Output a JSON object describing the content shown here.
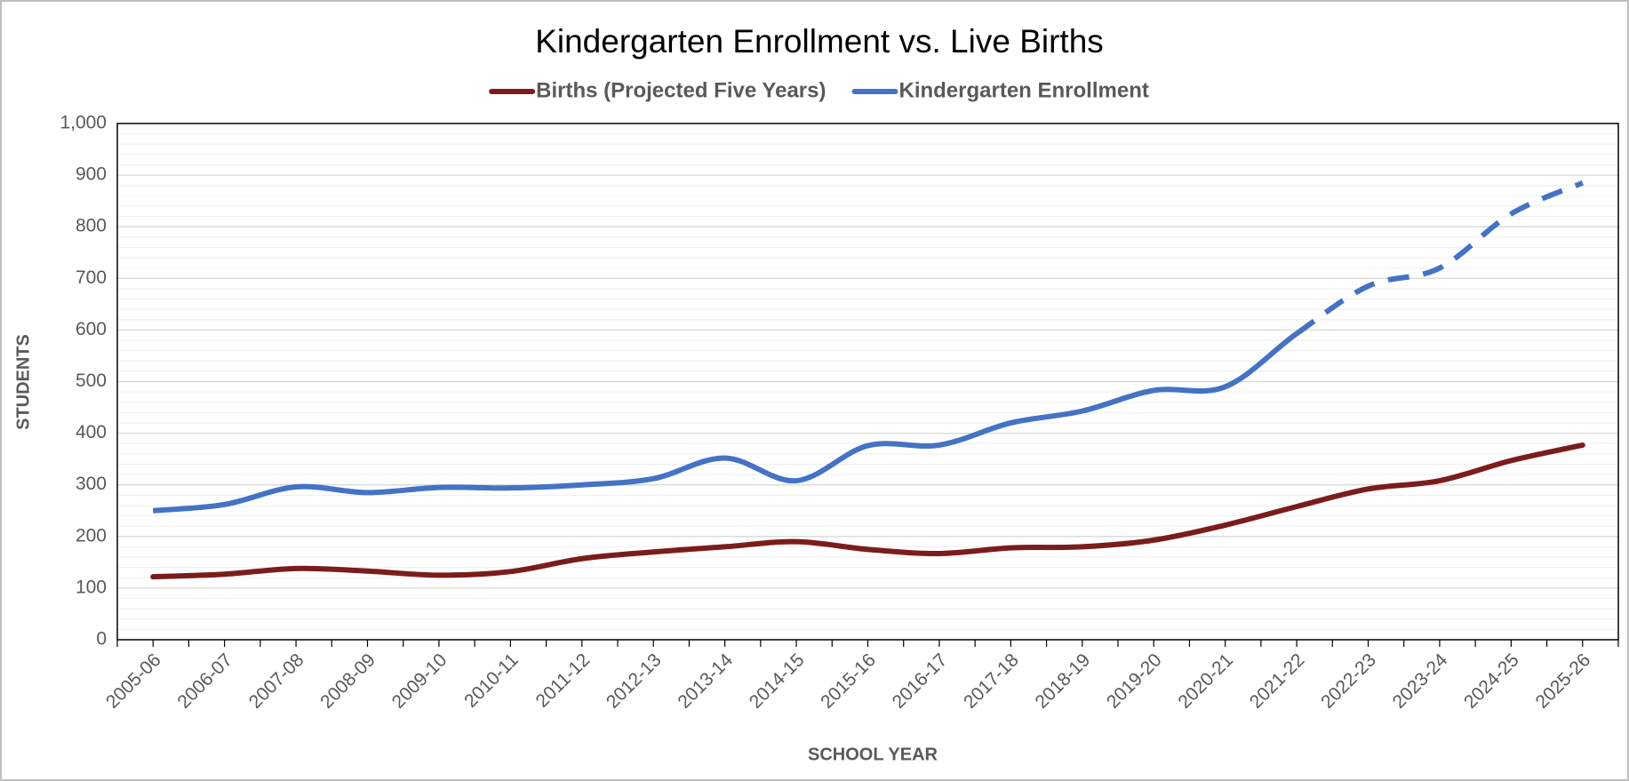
{
  "chart_data": {
    "type": "line",
    "title": "Kindergarten Enrollment vs. Live Births",
    "x_label": "SCHOOL YEAR",
    "y_label": "STUDENTS",
    "categories": [
      "2005-06",
      "2006-07",
      "2007-08",
      "2008-09",
      "2009-10",
      "2010-11",
      "2011-12",
      "2012-13",
      "2013-14",
      "2014-15",
      "2015-16",
      "2016-17",
      "2017-18",
      "2018-19",
      "2019-20",
      "2020-21",
      "2021-22",
      "2022-23",
      "2023-24",
      "2024-25",
      "2025-26"
    ],
    "series": [
      {
        "name": "Births (Projected Five Years)",
        "color": "#7b1c1c",
        "values": [
          122,
          127,
          138,
          133,
          125,
          132,
          157,
          170,
          180,
          190,
          175,
          167,
          178,
          180,
          193,
          222,
          258,
          292,
          308,
          347,
          377
        ]
      },
      {
        "name": "Kindergarten Enrollment",
        "color": "#4472c4",
        "dashed_from": "2021-22",
        "values": [
          250,
          262,
          296,
          285,
          295,
          294,
          300,
          312,
          352,
          308,
          376,
          377,
          420,
          443,
          483,
          490,
          593,
          685,
          720,
          825,
          885
        ]
      }
    ],
    "ylim": [
      0,
      1000
    ],
    "yticks": [
      0,
      100,
      200,
      300,
      400,
      500,
      600,
      700,
      800,
      900,
      {
        "value": 1000,
        "label": "1,000"
      }
    ],
    "grid": true,
    "minor_grid_step": 20,
    "legend": "top"
  }
}
